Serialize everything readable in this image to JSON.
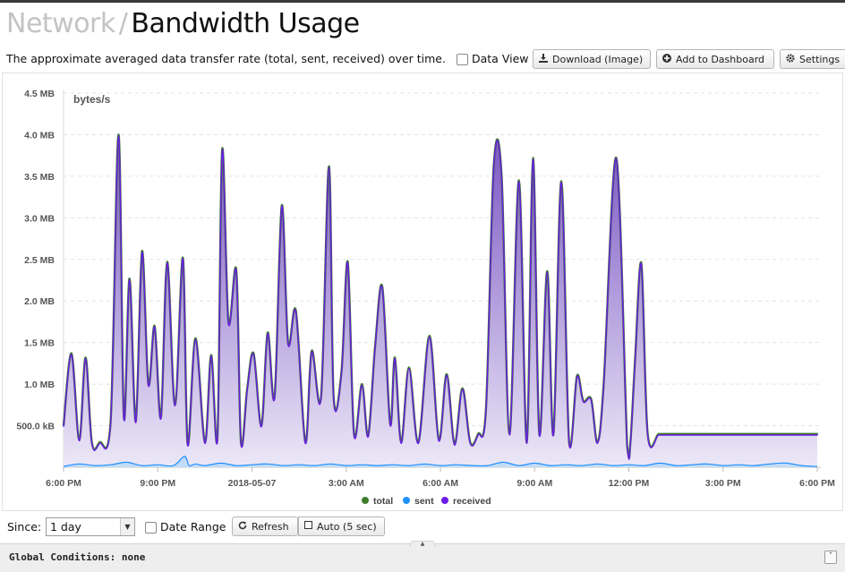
{
  "header": {
    "section": "Network",
    "separator": "/",
    "page": "Bandwidth Usage"
  },
  "toolbar": {
    "description": "The approximate averaged data transfer rate (total, sent, received) over time.",
    "data_view_label": "Data View",
    "download_label": "Download (Image)",
    "dashboard_label": "Add to Dashboard",
    "settings_label": "Settings"
  },
  "controls": {
    "since_label": "Since:",
    "since_value": "1 day",
    "date_range_label": "Date Range",
    "refresh_label": "Refresh",
    "auto_label": "Auto (5 sec)"
  },
  "footer": {
    "global_conditions": "Global Conditions: none"
  },
  "colors": {
    "total": "#3e7d2c",
    "sent": "#1e90ff",
    "received": "#6a1be8",
    "fill_top": "#7a55c4",
    "fill_bottom": "#ece8f7"
  },
  "chart_data": {
    "type": "area",
    "ylabel": "bytes/s",
    "y_ticks": [
      "500.0 kB",
      "1.0 MB",
      "1.5 MB",
      "2.0 MB",
      "2.5 MB",
      "3.0 MB",
      "3.5 MB",
      "4.0 MB",
      "4.5 MB"
    ],
    "y_tick_values": [
      0.5,
      1.0,
      1.5,
      2.0,
      2.5,
      3.0,
      3.5,
      4.0,
      4.5
    ],
    "ylim": [
      0,
      4.5
    ],
    "y_unit": "MB",
    "x_ticks": [
      "6:00 PM",
      "9:00 PM",
      "2018-05-07",
      "3:00 AM",
      "6:00 AM",
      "9:00 AM",
      "12:00 PM",
      "3:00 PM",
      "6:00 PM"
    ],
    "x_tick_hours": [
      0,
      3,
      6,
      9,
      12,
      15,
      18,
      21,
      24
    ],
    "xlim_hours": [
      0,
      24
    ],
    "legend": [
      "total",
      "sent",
      "received"
    ],
    "legend_position": "bottom-center",
    "grid": true,
    "series": [
      {
        "name": "total",
        "x": [
          0,
          0.25,
          0.5,
          0.7,
          0.9,
          1.15,
          1.5,
          1.75,
          1.92,
          2.1,
          2.3,
          2.5,
          2.7,
          2.9,
          3.1,
          3.3,
          3.55,
          3.8,
          3.95,
          4.2,
          4.5,
          4.7,
          4.9,
          5.05,
          5.25,
          5.5,
          5.65,
          5.85,
          6.05,
          6.3,
          6.5,
          6.72,
          6.95,
          7.15,
          7.4,
          7.7,
          7.9,
          8.2,
          8.45,
          8.6,
          8.85,
          9.05,
          9.25,
          9.5,
          9.7,
          9.92,
          10.15,
          10.4,
          10.55,
          10.75,
          11.0,
          11.3,
          11.65,
          11.95,
          12.2,
          12.45,
          12.7,
          12.95,
          13.2,
          13.45,
          13.7,
          13.95,
          14.2,
          14.5,
          14.75,
          14.95,
          15.15,
          15.4,
          15.6,
          15.85,
          16.1,
          16.35,
          16.55,
          16.8,
          17.0,
          17.2,
          17.6,
          17.95,
          18.05,
          18.2,
          18.4,
          18.6,
          18.95,
          19.15,
          19.4,
          19.6,
          19.9,
          20.15,
          20.4,
          20.65,
          20.85,
          21.05,
          21.3,
          21.55,
          21.75,
          22.1,
          22.4,
          22.75,
          23.05,
          23.3,
          23.6,
          23.95,
          24.0
        ],
        "values": [
          0.5,
          1.37,
          0.33,
          1.32,
          0.3,
          0.3,
          0.55,
          4.0,
          0.6,
          2.27,
          0.55,
          2.6,
          1.0,
          1.7,
          0.6,
          2.47,
          0.75,
          2.52,
          0.28,
          1.55,
          0.3,
          1.35,
          0.35,
          3.82,
          1.75,
          2.37,
          0.3,
          0.95,
          1.37,
          0.5,
          1.62,
          0.85,
          3.15,
          1.5,
          1.88,
          0.3,
          1.4,
          0.85,
          3.62,
          0.85,
          1.15,
          2.47,
          0.4,
          1.0,
          0.38,
          1.45,
          2.17,
          0.52,
          1.32,
          0.3,
          1.2,
          0.3,
          1.58,
          0.33,
          1.12,
          0.28,
          0.95,
          0.3,
          0.4,
          0.7,
          3.63,
          3.5,
          0.4,
          3.45,
          0.3,
          3.72,
          0.4,
          2.36,
          0.4,
          3.44,
          0.3,
          1.1,
          0.8,
          0.82,
          0.3,
          1.0,
          3.72,
          0.25,
          0.3,
          1.3,
          2.45,
          0.4,
          0.4,
          0.4,
          0.4,
          0.4,
          0.4,
          0.4,
          0.4,
          0.4,
          0.4,
          0.4,
          0.4,
          0.4,
          0.4,
          0.4,
          0.4,
          0.4,
          0.4,
          0.4,
          0.4,
          0.4,
          0.4
        ]
      },
      {
        "name": "sent",
        "x": [
          0,
          0.5,
          1.0,
          1.5,
          2.0,
          2.5,
          3.0,
          3.5,
          3.85,
          4.0,
          4.2,
          4.5,
          5.0,
          5.5,
          6.0,
          6.5,
          7.0,
          7.5,
          8.0,
          8.5,
          9.0,
          9.5,
          10.0,
          10.5,
          11.0,
          11.5,
          12.0,
          12.5,
          13.0,
          13.5,
          14.0,
          14.5,
          15.0,
          15.5,
          16.0,
          16.5,
          17.0,
          17.5,
          18.0,
          18.5,
          19.0,
          19.5,
          20.0,
          20.5,
          21.0,
          21.5,
          22.0,
          22.5,
          23.0,
          23.5,
          24.0
        ],
        "values": [
          0.01,
          0.04,
          0.02,
          0.03,
          0.06,
          0.02,
          0.03,
          0.02,
          0.13,
          0.02,
          0.04,
          0.02,
          0.05,
          0.02,
          0.03,
          0.04,
          0.02,
          0.03,
          0.02,
          0.04,
          0.02,
          0.03,
          0.02,
          0.03,
          0.02,
          0.04,
          0.02,
          0.03,
          0.02,
          0.02,
          0.06,
          0.02,
          0.05,
          0.02,
          0.03,
          0.02,
          0.04,
          0.02,
          0.03,
          0.02,
          0.05,
          0.02,
          0.03,
          0.04,
          0.02,
          0.03,
          0.02,
          0.04,
          0.05,
          0.02,
          0.01
        ]
      }
    ]
  }
}
